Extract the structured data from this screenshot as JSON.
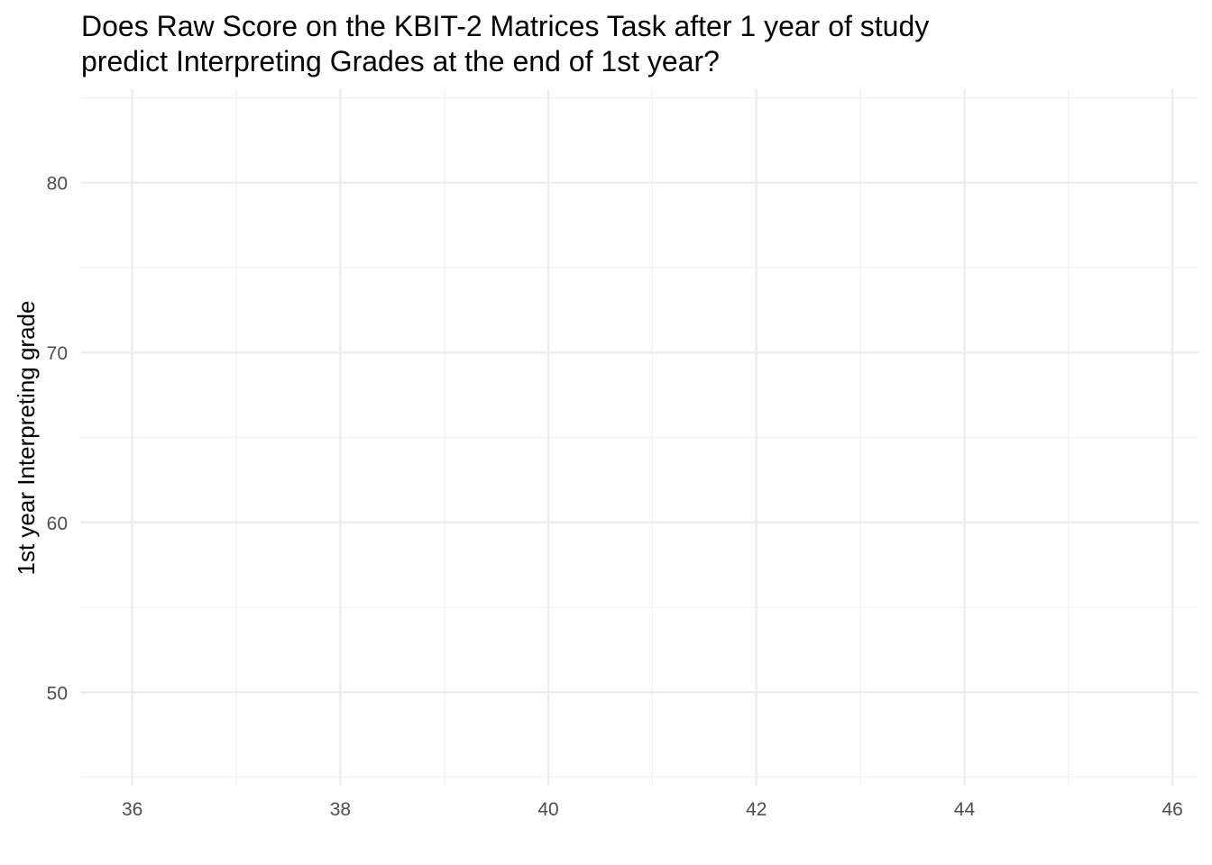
{
  "chart_data": {
    "type": "scatter",
    "title_lines": [
      "Does Raw Score on the KBIT-2 Matrices Task after 1 year of study",
      "predict Interpreting Grades at the end of 1st year?"
    ],
    "xlabel": "",
    "ylabel": "1st year Interpreting grade",
    "xlim": [
      35.5,
      46.25
    ],
    "ylim": [
      44.5,
      85.5
    ],
    "x_ticks": [
      36,
      38,
      40,
      42,
      44,
      46
    ],
    "y_ticks": [
      50,
      60,
      70,
      80
    ],
    "x_minor": [
      37,
      39,
      41,
      43,
      45
    ],
    "y_minor": [
      45,
      55,
      65,
      75,
      85
    ],
    "grid": true,
    "points": [],
    "colors": {
      "major_grid": "#ebebeb",
      "minor_grid": "#f2f2f2",
      "tick_label": "#4d4d4d",
      "text": "#000000"
    }
  }
}
